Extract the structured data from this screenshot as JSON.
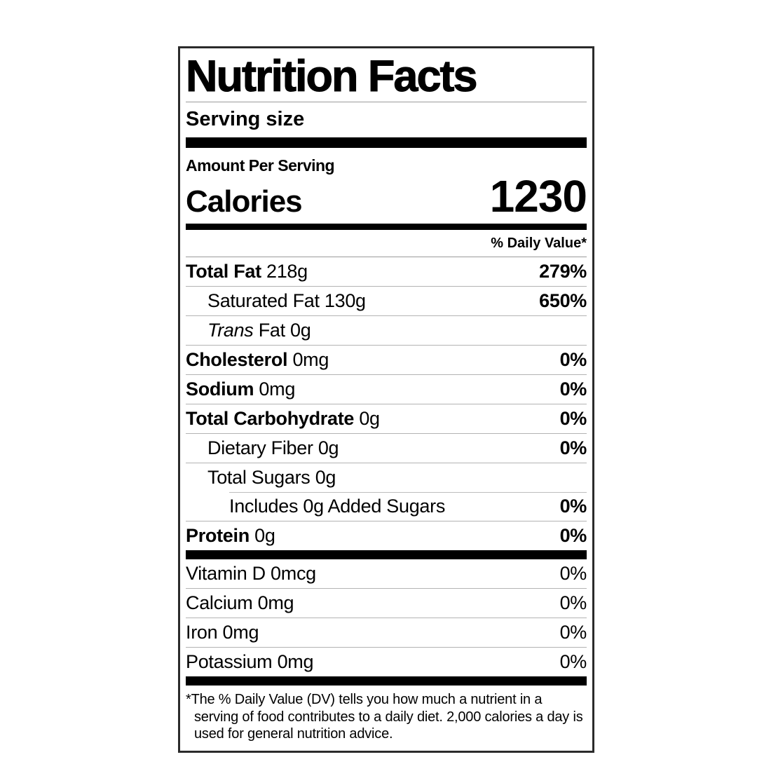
{
  "label": {
    "title": "Nutrition Facts",
    "serving_size_label": "Serving size",
    "amount_per_serving": "Amount Per Serving",
    "calories_label": "Calories",
    "calories_value": "1230",
    "daily_value_header": "% Daily Value*",
    "rows": [
      {
        "name": "Total Fat",
        "amount": "218g",
        "percent": "279%"
      },
      {
        "name": "Saturated Fat",
        "amount": "130g",
        "percent": "650%"
      },
      {
        "name": "Trans",
        "amount": "Fat 0g",
        "percent": ""
      },
      {
        "name": "Cholesterol",
        "amount": "0mg",
        "percent": "0%"
      },
      {
        "name": "Sodium",
        "amount": "0mg",
        "percent": "0%"
      },
      {
        "name": "Total Carbohydrate",
        "amount": "0g",
        "percent": "0%"
      },
      {
        "name": "Dietary Fiber",
        "amount": "0g",
        "percent": "0%"
      },
      {
        "name": "Total Sugars",
        "amount": "0g",
        "percent": ""
      },
      {
        "name": "Includes 0g Added Sugars",
        "amount": "",
        "percent": "0%"
      },
      {
        "name": "Protein",
        "amount": "0g",
        "percent": "0%"
      }
    ],
    "vitamins": [
      {
        "name": "Vitamin D",
        "amount": "0mcg",
        "percent": "0%"
      },
      {
        "name": "Calcium",
        "amount": "0mg",
        "percent": "0%"
      },
      {
        "name": "Iron",
        "amount": "0mg",
        "percent": "0%"
      },
      {
        "name": "Potassium",
        "amount": "0mg",
        "percent": "0%"
      }
    ],
    "footnote": "*The % Daily Value (DV) tells you how much a nutrient in a serving of food contributes to a daily diet. 2,000 calories a day is used for general nutrition advice.",
    "colors": {
      "text": "#000000",
      "background": "#ffffff",
      "thick_bar": "#000000",
      "thin_rule": "#b3b3b3"
    }
  }
}
